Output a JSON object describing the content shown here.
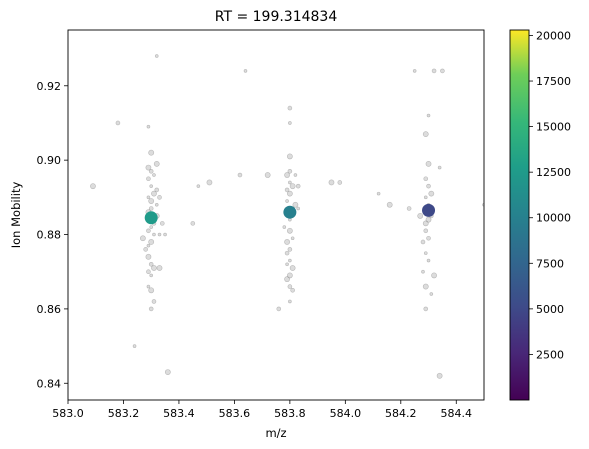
{
  "chart_data": {
    "type": "scatter",
    "title": "RT = 199.314834",
    "xlabel": "m/z",
    "ylabel": "Ion Mobility",
    "xlim": [
      583.0,
      584.5
    ],
    "ylim": [
      0.8355,
      0.935
    ],
    "xticks": [
      {
        "value": 583.0,
        "label": "583.0"
      },
      {
        "value": 583.2,
        "label": "583.2"
      },
      {
        "value": 583.4,
        "label": "583.4"
      },
      {
        "value": 583.6,
        "label": "583.6"
      },
      {
        "value": 583.8,
        "label": "583.8"
      },
      {
        "value": 584.0,
        "label": "584.0"
      },
      {
        "value": 584.2,
        "label": "584.2"
      },
      {
        "value": 584.4,
        "label": "584.4"
      }
    ],
    "yticks": [
      {
        "value": 0.84,
        "label": "0.84"
      },
      {
        "value": 0.86,
        "label": "0.86"
      },
      {
        "value": 0.88,
        "label": "0.88"
      },
      {
        "value": 0.9,
        "label": "0.90"
      },
      {
        "value": 0.92,
        "label": "0.92"
      }
    ],
    "grid": false,
    "colorbar": {
      "colormap": "viridis",
      "min": 0,
      "max": 20300,
      "ticks": [
        {
          "value": 2500,
          "label": "2500"
        },
        {
          "value": 5000,
          "label": "5000"
        },
        {
          "value": 7500,
          "label": "7500"
        },
        {
          "value": 10000,
          "label": "10000"
        },
        {
          "value": 12500,
          "label": "12500"
        },
        {
          "value": 15000,
          "label": "15000"
        },
        {
          "value": 17500,
          "label": "17500"
        },
        {
          "value": 20000,
          "label": "20000"
        }
      ]
    },
    "highlighted_points": [
      {
        "x": 583.3,
        "y": 0.8845,
        "intensity": 12500
      },
      {
        "x": 583.8,
        "y": 0.886,
        "intensity": 10000
      },
      {
        "x": 584.3,
        "y": 0.8865,
        "intensity": 5000
      }
    ],
    "background_points": [
      [
        583.09,
        0.893
      ],
      [
        583.18,
        0.91
      ],
      [
        583.24,
        0.85
      ],
      [
        583.27,
        0.879
      ],
      [
        583.28,
        0.876
      ],
      [
        583.29,
        0.909
      ],
      [
        583.29,
        0.898
      ],
      [
        583.29,
        0.895
      ],
      [
        583.29,
        0.89
      ],
      [
        583.29,
        0.886
      ],
      [
        583.29,
        0.881
      ],
      [
        583.29,
        0.877
      ],
      [
        583.29,
        0.874
      ],
      [
        583.29,
        0.87
      ],
      [
        583.29,
        0.866
      ],
      [
        583.3,
        0.902
      ],
      [
        583.3,
        0.897
      ],
      [
        583.3,
        0.893
      ],
      [
        583.3,
        0.889
      ],
      [
        583.3,
        0.887
      ],
      [
        583.3,
        0.882
      ],
      [
        583.3,
        0.878
      ],
      [
        583.3,
        0.872
      ],
      [
        583.3,
        0.869
      ],
      [
        583.3,
        0.865
      ],
      [
        583.3,
        0.86
      ],
      [
        583.31,
        0.896
      ],
      [
        583.31,
        0.891
      ],
      [
        583.31,
        0.883
      ],
      [
        583.31,
        0.88
      ],
      [
        583.31,
        0.871
      ],
      [
        583.31,
        0.862
      ],
      [
        583.32,
        0.928
      ],
      [
        583.32,
        0.899
      ],
      [
        583.32,
        0.892
      ],
      [
        583.32,
        0.888
      ],
      [
        583.32,
        0.885
      ],
      [
        583.33,
        0.89
      ],
      [
        583.33,
        0.88
      ],
      [
        583.33,
        0.871
      ],
      [
        583.34,
        0.883
      ],
      [
        583.35,
        0.88
      ],
      [
        583.36,
        0.843
      ],
      [
        583.45,
        0.883
      ],
      [
        583.47,
        0.893
      ],
      [
        583.51,
        0.894
      ],
      [
        583.62,
        0.896
      ],
      [
        583.64,
        0.924
      ],
      [
        583.72,
        0.896
      ],
      [
        583.76,
        0.86
      ],
      [
        583.78,
        0.882
      ],
      [
        583.79,
        0.896
      ],
      [
        583.79,
        0.892
      ],
      [
        583.79,
        0.889
      ],
      [
        583.79,
        0.878
      ],
      [
        583.79,
        0.875
      ],
      [
        583.79,
        0.872
      ],
      [
        583.79,
        0.868
      ],
      [
        583.8,
        0.914
      ],
      [
        583.8,
        0.91
      ],
      [
        583.8,
        0.901
      ],
      [
        583.8,
        0.897
      ],
      [
        583.8,
        0.894
      ],
      [
        583.8,
        0.891
      ],
      [
        583.8,
        0.887
      ],
      [
        583.8,
        0.884
      ],
      [
        583.8,
        0.881
      ],
      [
        583.8,
        0.876
      ],
      [
        583.8,
        0.873
      ],
      [
        583.8,
        0.869
      ],
      [
        583.8,
        0.866
      ],
      [
        583.8,
        0.862
      ],
      [
        583.81,
        0.893
      ],
      [
        583.81,
        0.886
      ],
      [
        583.81,
        0.879
      ],
      [
        583.81,
        0.871
      ],
      [
        583.81,
        0.865
      ],
      [
        583.82,
        0.896
      ],
      [
        583.82,
        0.888
      ],
      [
        583.83,
        0.893
      ],
      [
        583.83,
        0.887
      ],
      [
        583.95,
        0.894
      ],
      [
        583.98,
        0.894
      ],
      [
        584.12,
        0.891
      ],
      [
        584.16,
        0.888
      ],
      [
        584.23,
        0.887
      ],
      [
        584.25,
        0.924
      ],
      [
        584.27,
        0.885
      ],
      [
        584.28,
        0.878
      ],
      [
        584.28,
        0.87
      ],
      [
        584.29,
        0.907
      ],
      [
        584.29,
        0.895
      ],
      [
        584.29,
        0.89
      ],
      [
        584.29,
        0.883
      ],
      [
        584.29,
        0.881
      ],
      [
        584.29,
        0.875
      ],
      [
        584.29,
        0.866
      ],
      [
        584.29,
        0.86
      ],
      [
        584.3,
        0.912
      ],
      [
        584.3,
        0.899
      ],
      [
        584.3,
        0.893
      ],
      [
        584.3,
        0.888
      ],
      [
        584.3,
        0.884
      ],
      [
        584.3,
        0.879
      ],
      [
        584.3,
        0.873
      ],
      [
        584.31,
        0.891
      ],
      [
        584.31,
        0.885
      ],
      [
        584.31,
        0.864
      ],
      [
        584.32,
        0.869
      ],
      [
        584.32,
        0.924
      ],
      [
        584.34,
        0.898
      ],
      [
        584.34,
        0.842
      ],
      [
        584.35,
        0.924
      ],
      [
        584.5,
        0.888
      ]
    ]
  }
}
